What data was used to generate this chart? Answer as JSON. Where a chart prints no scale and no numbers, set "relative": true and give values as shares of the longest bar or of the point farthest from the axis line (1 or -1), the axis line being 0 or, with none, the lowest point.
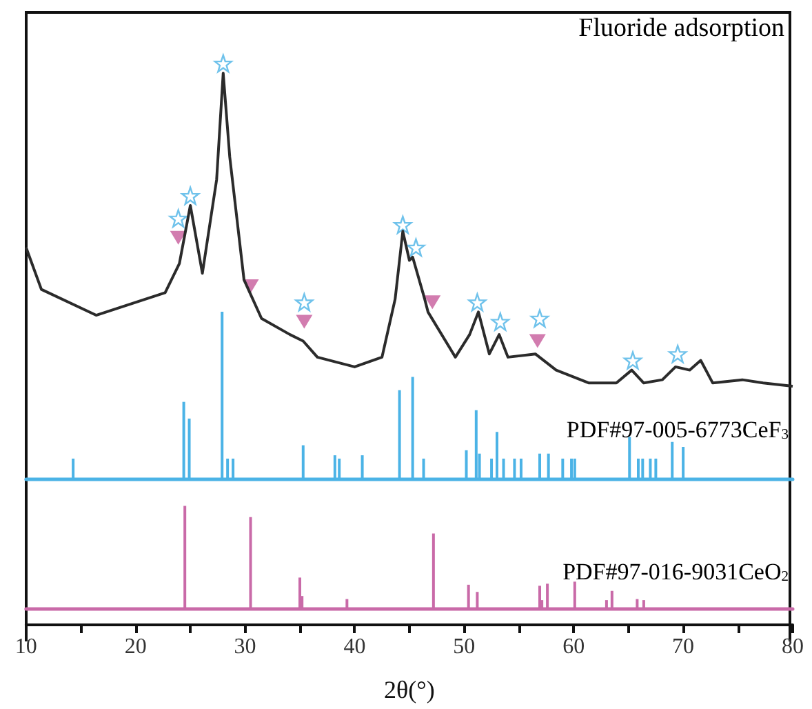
{
  "chart_data": [
    {
      "type": "line",
      "relative": true,
      "xlim": [
        10,
        80
      ],
      "tick_labels": false,
      "annotations": [
        "Fluoride adsorption"
      ],
      "series": [
        {
          "type": "line",
          "color": "#2b2b2b",
          "marker": "none",
          "x": [
            10,
            11.4,
            16.4,
            22.7,
            24.0,
            25.0,
            26.1,
            27.4,
            28.0,
            28.6,
            29.9,
            31.5,
            34.1,
            35.3,
            36.6,
            40.0,
            42.5,
            43.7,
            44.4,
            45.0,
            45.3,
            46.4,
            46.7,
            49.2,
            50.5,
            51.3,
            52.3,
            53.2,
            54.0,
            56.5,
            58.4,
            61.4,
            63.9,
            65.3,
            66.4,
            68.1,
            69.3,
            70.6,
            71.6,
            72.7,
            75.4,
            77.3,
            80
          ],
          "values": [
            0.43,
            0.3,
            0.22,
            0.29,
            0.38,
            0.56,
            0.35,
            0.64,
            0.97,
            0.71,
            0.33,
            0.21,
            0.16,
            0.14,
            0.09,
            0.06,
            0.09,
            0.27,
            0.48,
            0.39,
            0.4,
            0.27,
            0.23,
            0.09,
            0.16,
            0.23,
            0.1,
            0.16,
            0.09,
            0.1,
            0.05,
            0.01,
            0.01,
            0.05,
            0.01,
            0.02,
            0.06,
            0.05,
            0.08,
            0.01,
            0.02,
            0.01,
            0
          ]
        },
        {
          "type": "scatter",
          "color": "#4bb3e6",
          "marker": "star",
          "x": [
            23.9,
            25.0,
            28.0,
            35.4,
            44.4,
            45.6,
            51.2,
            53.3,
            56.9,
            65.4,
            69.5
          ],
          "values": [
            0.52,
            0.59,
            1,
            0.26,
            0.5,
            0.43,
            0.26,
            0.2,
            0.21,
            0.08,
            0.1
          ]
        },
        {
          "type": "scatter",
          "color": "#c75b9b",
          "marker": "triangle",
          "x": [
            23.9,
            30.5,
            35.4,
            47.1,
            56.7
          ],
          "values": [
            0.46,
            0.31,
            0.2,
            0.26,
            0.14
          ]
        }
      ]
    },
    {
      "type": "bar",
      "relative": true,
      "xlim": [
        10,
        80
      ],
      "tick_labels": false,
      "series": [
        {
          "name": "PDF#97-005-6773CeF$_{3}$",
          "color": "#4bb3e6",
          "x": [
            14.3,
            24.4,
            24.9,
            27.9,
            28.4,
            28.9,
            35.3,
            38.2,
            38.6,
            40.7,
            44.1,
            45.3,
            46.3,
            50.2,
            51.1,
            51.4,
            52.5,
            53.0,
            53.6,
            54.6,
            55.2,
            56.9,
            57.7,
            59.0,
            59.8,
            60.1,
            65.1,
            65.9,
            66.3,
            67.0,
            67.5,
            69.0,
            70.0
          ],
          "values": [
            0.12,
            0.46,
            0.36,
            1,
            0.12,
            0.12,
            0.2,
            0.14,
            0.12,
            0.14,
            0.53,
            0.61,
            0.12,
            0.17,
            0.41,
            0.15,
            0.12,
            0.28,
            0.12,
            0.12,
            0.12,
            0.15,
            0.15,
            0.12,
            0.12,
            0.12,
            0.25,
            0.12,
            0.12,
            0.12,
            0.12,
            0.22,
            0.19
          ]
        }
      ]
    },
    {
      "type": "bar",
      "relative": true,
      "xlim": [
        10,
        80
      ],
      "xticks": [
        10,
        {
          "value": 15,
          "label": null
        },
        20,
        {
          "value": 25,
          "label": null
        },
        30,
        {
          "value": 35,
          "label": null
        },
        40,
        {
          "value": 45,
          "label": null
        },
        50,
        {
          "value": 55,
          "label": null
        },
        60,
        {
          "value": 65,
          "label": null
        },
        70,
        {
          "value": 75,
          "label": null
        },
        80
      ],
      "tick_labels": "x",
      "xlabel": "2θ(°)",
      "series": [
        {
          "name": "PDF#97-016-9031CeO$_{2}$",
          "color": "#c96aa8",
          "x": [
            24.5,
            30.5,
            35.0,
            35.2,
            39.3,
            47.2,
            50.4,
            51.2,
            56.9,
            57.1,
            57.6,
            60.1,
            63.0,
            63.5,
            65.8,
            66.4
          ],
          "values": [
            1,
            0.89,
            0.3,
            0.12,
            0.09,
            0.73,
            0.23,
            0.16,
            0.22,
            0.08,
            0.24,
            0.26,
            0.08,
            0.17,
            0.09,
            0.08
          ]
        }
      ]
    }
  ]
}
